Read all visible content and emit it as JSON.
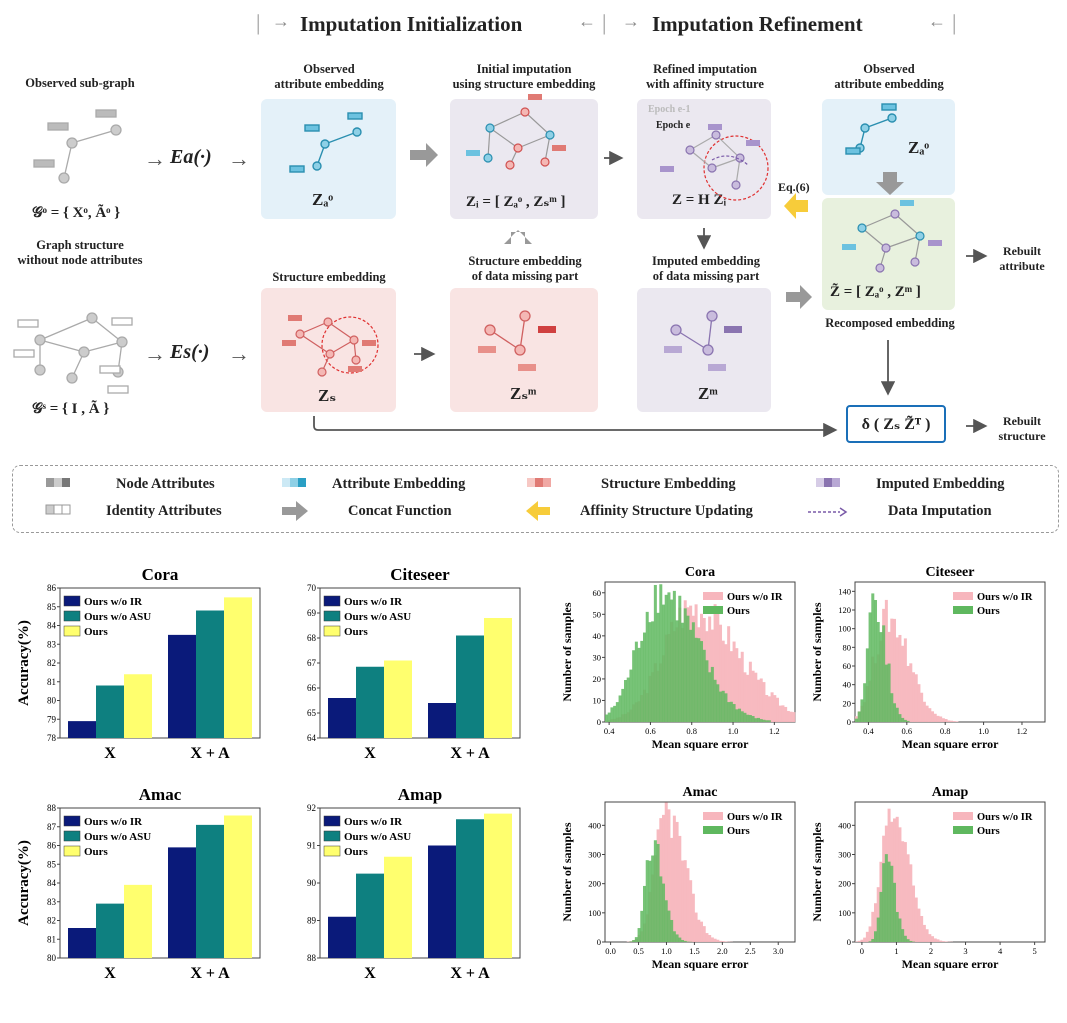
{
  "diagram": {
    "stage_init": "Imputation Initialization",
    "stage_refine": "Imputation Refinement",
    "observed_subgraph": "Observed sub-graph",
    "go_formula": "𝒢ᵒ = { Xᵒ, Ãᵒ }",
    "graph_structure": [
      "Graph structure",
      "without node attributes"
    ],
    "gs_formula": "𝒢ˢ = { I , Ã }",
    "encoder_a": "Ea(·)",
    "encoder_s": "Es(·)",
    "obs_attr_emb": [
      "Observed",
      "attribute embedding"
    ],
    "initial_imputation": [
      "Initial imputation",
      "using structure embedding"
    ],
    "refined_imputation": [
      "Refined imputation",
      "with affinity structure"
    ],
    "obs_attr_emb2": [
      "Observed",
      "attribute embedding"
    ],
    "structure_embedding": "Structure embedding",
    "struct_emb_missing": [
      "Structure embedding",
      "of data missing part"
    ],
    "imputed_emb_missing": [
      "Imputed embedding",
      "of data missing part"
    ],
    "recomposed_embedding": "Recomposed embedding",
    "za_o": "Zₐᵒ",
    "zi_eq": "Zᵢ = [ Zₐᵒ , Zₛᵐ ]",
    "z_eq": "Z = H Zᵢ",
    "za_o2": "Zₐᵒ",
    "z_tilde_eq": "Z̃ = [ Zₐᵒ , Zᵐ ]",
    "zs": "Zₛ",
    "zs_m": "Zₛᵐ",
    "z_m": "Zᵐ",
    "delta_eq": "δ ( Zₛ Z̃ᵀ )",
    "eq6": "Eq.(6)",
    "epoch_e1": "Epoch e-1",
    "epoch_e": "Epoch e",
    "rebuilt_attribute": [
      "Rebuilt",
      "attribute"
    ],
    "rebuilt_structure": [
      "Rebuilt",
      "structure"
    ]
  },
  "legend": {
    "node_attributes": "Node Attributes",
    "identity_attributes": "Identity Attributes",
    "attribute_embedding": "Attribute Embedding",
    "concat_function": "Concat Function",
    "structure_embedding": "Structure Embedding",
    "affinity_updating": "Affinity Structure Updating",
    "imputed_embedding": "Imputed Embedding",
    "data_imputation": "Data Imputation"
  },
  "colors": {
    "ours_wo_ir": "#0a1a7a",
    "ours_wo_asu": "#0e8080",
    "ours": "#ffff6e",
    "hist_pink": "#f7b6bd",
    "hist_green": "#5fb85f",
    "attr_panel": "#e4f1f9",
    "struct_panel": "#f9e4e3",
    "imp_panel": "#ebe8f0",
    "recomp_panel": "#e8f1de"
  },
  "chart_data": [
    {
      "type": "bar",
      "title": "Cora",
      "ylabel": "Accuracy(%)",
      "categories": [
        "X",
        "X + A"
      ],
      "series": [
        {
          "name": "Ours w/o IR",
          "values": [
            78.9,
            83.5
          ]
        },
        {
          "name": "Ours w/o ASU",
          "values": [
            80.8,
            84.8
          ]
        },
        {
          "name": "Ours",
          "values": [
            81.4,
            85.5
          ]
        }
      ],
      "ylim": [
        78,
        86
      ],
      "yticks": [
        "78",
        "79",
        "80",
        "81",
        "82",
        "83",
        "84",
        "85",
        "86"
      ],
      "legend": "top-left"
    },
    {
      "type": "bar",
      "title": "Citeseer",
      "ylabel": "",
      "categories": [
        "X",
        "X + A"
      ],
      "series": [
        {
          "name": "Ours w/o IR",
          "values": [
            65.6,
            65.4
          ]
        },
        {
          "name": "Ours w/o ASU",
          "values": [
            66.85,
            68.1
          ]
        },
        {
          "name": "Ours",
          "values": [
            67.1,
            68.8
          ]
        }
      ],
      "ylim": [
        64,
        70
      ],
      "yticks": [
        "64",
        "65",
        "66",
        "67",
        "68",
        "69",
        "70"
      ],
      "legend": "top-left"
    },
    {
      "type": "bar",
      "title": "Amac",
      "ylabel": "Accuracy(%)",
      "categories": [
        "X",
        "X + A"
      ],
      "series": [
        {
          "name": "Ours w/o IR",
          "values": [
            81.6,
            85.9
          ]
        },
        {
          "name": "Ours w/o ASU",
          "values": [
            82.9,
            87.1
          ]
        },
        {
          "name": "Ours",
          "values": [
            83.9,
            87.6
          ]
        }
      ],
      "ylim": [
        80,
        88
      ],
      "yticks": [
        "80",
        "81",
        "82",
        "83",
        "84",
        "85",
        "86",
        "87",
        "88"
      ],
      "legend": "top-left"
    },
    {
      "type": "bar",
      "title": "Amap",
      "ylabel": "",
      "categories": [
        "X",
        "X + A"
      ],
      "series": [
        {
          "name": "Ours w/o IR",
          "values": [
            89.1,
            91.0
          ]
        },
        {
          "name": "Ours w/o ASU",
          "values": [
            90.25,
            91.7
          ]
        },
        {
          "name": "Ours",
          "values": [
            90.7,
            91.85
          ]
        }
      ],
      "ylim": [
        88,
        92
      ],
      "yticks": [
        "88",
        "89",
        "90",
        "91",
        "92"
      ],
      "legend": "top-left"
    },
    {
      "type": "histogram",
      "title": "Cora",
      "xlabel": "Mean square error",
      "ylabel": "Number of samples",
      "xlim": [
        0.38,
        1.3
      ],
      "ylim": [
        0,
        65
      ],
      "xticks": [
        "0.4",
        "0.6",
        "0.8",
        "1.0",
        "1.2"
      ],
      "yticks": [
        "0",
        "10",
        "20",
        "30",
        "40",
        "50",
        "60"
      ],
      "series": [
        {
          "name": "Ours w/o IR",
          "peak_x": 0.8,
          "peak_y": 55,
          "spread": 0.14
        },
        {
          "name": "Ours",
          "peak_x": 0.65,
          "peak_y": 62,
          "spread": 0.11
        }
      ],
      "legend": "top-right"
    },
    {
      "type": "histogram",
      "title": "Citeseer",
      "xlabel": "Mean square error",
      "ylabel": "Number of samples",
      "xlim": [
        0.33,
        1.32
      ],
      "ylim": [
        0,
        150
      ],
      "xticks": [
        "0.4",
        "0.6",
        "0.8",
        "1.0",
        "1.2"
      ],
      "yticks": [
        "0",
        "20",
        "40",
        "60",
        "80",
        "100",
        "120",
        "140"
      ],
      "series": [
        {
          "name": "Ours w/o IR",
          "peak_x": 0.5,
          "peak_y": 115,
          "spread": 0.07
        },
        {
          "name": "Ours",
          "peak_x": 0.43,
          "peak_y": 140,
          "spread": 0.035
        }
      ],
      "legend": "top-right"
    },
    {
      "type": "histogram",
      "title": "Amac",
      "xlabel": "Mean square error",
      "ylabel": "Number of samples",
      "xlim": [
        -0.1,
        3.3
      ],
      "ylim": [
        0,
        480
      ],
      "xticks": [
        "0.0",
        "0.5",
        "1.0",
        "1.5",
        "2.0",
        "2.5",
        "3.0"
      ],
      "yticks": [
        "0",
        "100",
        "200",
        "300",
        "400"
      ],
      "series": [
        {
          "name": "Ours w/o IR",
          "peak_x": 1.0,
          "peak_y": 460,
          "spread": 0.2
        },
        {
          "name": "Ours",
          "peak_x": 0.75,
          "peak_y": 350,
          "spread": 0.12
        }
      ],
      "legend": "top-right"
    },
    {
      "type": "histogram",
      "title": "Amap",
      "xlabel": "Mean square error",
      "ylabel": "Number of samples",
      "xlim": [
        -0.2,
        5.3
      ],
      "ylim": [
        0,
        480
      ],
      "xticks": [
        "0",
        "1",
        "2",
        "3",
        "4",
        "5"
      ],
      "yticks": [
        "0",
        "100",
        "200",
        "300",
        "400"
      ],
      "series": [
        {
          "name": "Ours w/o IR",
          "peak_x": 0.85,
          "peak_y": 460,
          "spread": 0.3
        },
        {
          "name": "Ours",
          "peak_x": 0.7,
          "peak_y": 300,
          "spread": 0.15
        }
      ],
      "legend": "top-right"
    }
  ]
}
